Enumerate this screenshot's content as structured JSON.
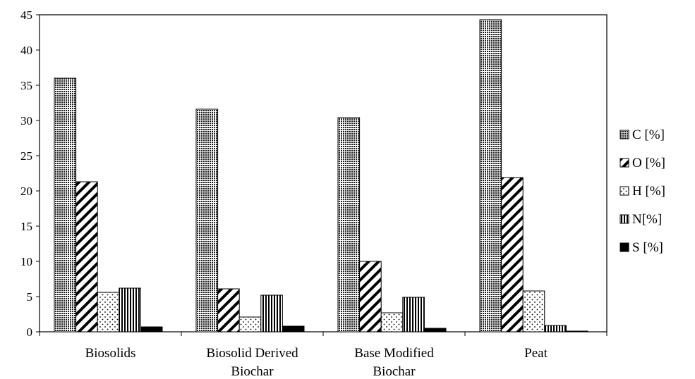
{
  "chart_data": {
    "type": "bar",
    "categories": [
      [
        "Biosolids"
      ],
      [
        "Biosolid Derived",
        "Biochar"
      ],
      [
        "Base Modified",
        "Biochar"
      ],
      [
        "Peat"
      ]
    ],
    "series": [
      {
        "name": "C [%]",
        "pattern": "dense-dots",
        "values": [
          36.0,
          31.6,
          30.4,
          44.3
        ]
      },
      {
        "name": "O [%]",
        "pattern": "diagonal-hatch",
        "values": [
          21.3,
          6.1,
          10.0,
          21.9
        ]
      },
      {
        "name": "H [%]",
        "pattern": "sparse-dots",
        "values": [
          5.6,
          2.1,
          2.7,
          5.8
        ]
      },
      {
        "name": "N[%]",
        "pattern": "vertical-lines",
        "values": [
          6.2,
          5.2,
          4.9,
          0.9
        ]
      },
      {
        "name": "S [%]",
        "pattern": "solid-black",
        "values": [
          0.7,
          0.8,
          0.5,
          0.1
        ]
      }
    ],
    "title": "",
    "xlabel": "",
    "ylabel": "",
    "ylim": [
      0,
      45
    ],
    "yticks": [
      0,
      5,
      10,
      15,
      20,
      25,
      30,
      35,
      40,
      45
    ],
    "grid": false,
    "legend_placement": "right"
  }
}
